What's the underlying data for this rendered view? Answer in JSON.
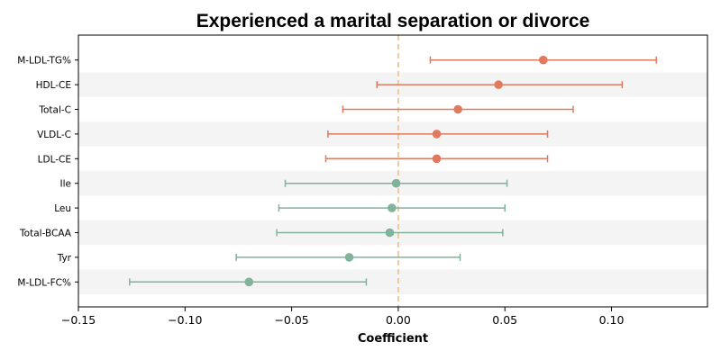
{
  "chart_data": {
    "type": "forest",
    "title": "Experienced a marital separation or divorce",
    "xlabel": "Coefficient",
    "ylabel": "",
    "xlim": [
      -0.15,
      0.145
    ],
    "x_ticks": [
      -0.15,
      -0.1,
      -0.05,
      0.0,
      0.05,
      0.1
    ],
    "x_tick_labels": [
      "−0.15",
      "−0.10",
      "−0.05",
      "0.00",
      "0.05",
      "0.10"
    ],
    "reference_line": 0.0,
    "alternating_row_shading": true,
    "colors": {
      "positive": "#e07a5f",
      "negative": "#81b29a",
      "reference_line": "#f2c48d",
      "row_shade": "#f4f4f4"
    },
    "rows": [
      {
        "label": "M-LDL-TG%",
        "estimate": 0.068,
        "ci_low": 0.015,
        "ci_high": 0.121
      },
      {
        "label": "HDL-CE",
        "estimate": 0.047,
        "ci_low": -0.01,
        "ci_high": 0.105
      },
      {
        "label": "Total-C",
        "estimate": 0.028,
        "ci_low": -0.026,
        "ci_high": 0.082
      },
      {
        "label": "VLDL-C",
        "estimate": 0.018,
        "ci_low": -0.033,
        "ci_high": 0.07
      },
      {
        "label": "LDL-CE",
        "estimate": 0.018,
        "ci_low": -0.034,
        "ci_high": 0.07
      },
      {
        "label": "Ile",
        "estimate": -0.001,
        "ci_low": -0.053,
        "ci_high": 0.051
      },
      {
        "label": "Leu",
        "estimate": -0.003,
        "ci_low": -0.056,
        "ci_high": 0.05
      },
      {
        "label": "Total-BCAA",
        "estimate": -0.004,
        "ci_low": -0.057,
        "ci_high": 0.049
      },
      {
        "label": "Tyr",
        "estimate": -0.023,
        "ci_low": -0.076,
        "ci_high": 0.029
      },
      {
        "label": "M-LDL-FC%",
        "estimate": -0.07,
        "ci_low": -0.126,
        "ci_high": -0.015
      }
    ]
  }
}
